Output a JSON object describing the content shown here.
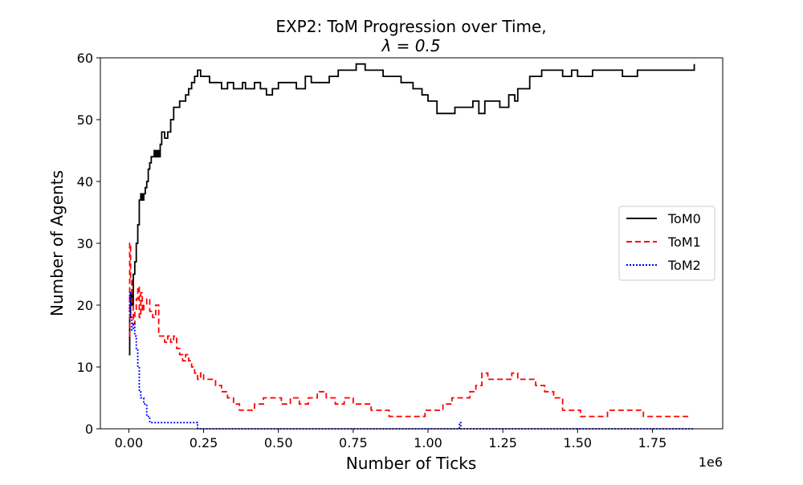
{
  "chart_data": {
    "type": "line",
    "title_line1": "EXP2: ToM Progression over Time,",
    "title_line2": "λ = 0.5",
    "xlabel": "Number of Ticks",
    "ylabel": "Number of Agents",
    "x_multiplier": "1e6",
    "xlim": [
      -0.095,
      1.985
    ],
    "ylim": [
      0,
      60
    ],
    "x_ticks": [
      0.0,
      0.25,
      0.5,
      0.75,
      1.0,
      1.25,
      1.5,
      1.75
    ],
    "x_tick_labels": [
      "0.00",
      "0.25",
      "0.50",
      "0.75",
      "1.00",
      "1.25",
      "1.50",
      "1.75"
    ],
    "y_ticks": [
      0,
      10,
      20,
      30,
      40,
      50,
      60
    ],
    "y_tick_labels": [
      "0",
      "10",
      "20",
      "30",
      "40",
      "50",
      "60"
    ],
    "legend_position": "center-right",
    "series": [
      {
        "name": "ToM0",
        "color": "#000000",
        "style": "solid",
        "x": [
          0.0,
          0.003,
          0.006,
          0.01,
          0.015,
          0.02,
          0.025,
          0.03,
          0.035,
          0.04,
          0.045,
          0.05,
          0.055,
          0.06,
          0.065,
          0.07,
          0.075,
          0.08,
          0.085,
          0.09,
          0.095,
          0.1,
          0.105,
          0.11,
          0.12,
          0.13,
          0.14,
          0.15,
          0.16,
          0.17,
          0.18,
          0.19,
          0.2,
          0.21,
          0.22,
          0.23,
          0.24,
          0.25,
          0.27,
          0.29,
          0.31,
          0.33,
          0.35,
          0.37,
          0.38,
          0.39,
          0.4,
          0.42,
          0.44,
          0.46,
          0.48,
          0.5,
          0.53,
          0.56,
          0.59,
          0.61,
          0.64,
          0.67,
          0.7,
          0.73,
          0.76,
          0.79,
          0.82,
          0.85,
          0.88,
          0.91,
          0.92,
          0.95,
          0.98,
          1.0,
          1.03,
          1.06,
          1.09,
          1.11,
          1.13,
          1.15,
          1.17,
          1.19,
          1.21,
          1.24,
          1.27,
          1.29,
          1.3,
          1.32,
          1.34,
          1.36,
          1.38,
          1.4,
          1.42,
          1.45,
          1.48,
          1.5,
          1.55,
          1.6,
          1.65,
          1.7,
          1.75,
          1.8,
          1.85,
          1.88,
          1.89
        ],
        "y": [
          12,
          18,
          22,
          20,
          25,
          27,
          30,
          33,
          37,
          38,
          37,
          38,
          39,
          40,
          42,
          43,
          44,
          44,
          45,
          44,
          45,
          44,
          46,
          48,
          47,
          48,
          50,
          52,
          52,
          53,
          53,
          54,
          55,
          56,
          57,
          58,
          57,
          57,
          56,
          56,
          55,
          56,
          55,
          55,
          56,
          55,
          55,
          56,
          55,
          54,
          55,
          56,
          56,
          55,
          57,
          56,
          56,
          57,
          58,
          58,
          59,
          58,
          58,
          57,
          57,
          56,
          56,
          55,
          54,
          53,
          51,
          51,
          52,
          52,
          52,
          53,
          51,
          53,
          53,
          52,
          54,
          53,
          55,
          55,
          57,
          57,
          58,
          58,
          58,
          57,
          58,
          57,
          58,
          58,
          57,
          58,
          58,
          58,
          58,
          58,
          59
        ]
      },
      {
        "name": "ToM1",
        "color": "#ff0000",
        "style": "dashed",
        "x": [
          0.0,
          0.003,
          0.006,
          0.01,
          0.015,
          0.02,
          0.025,
          0.03,
          0.035,
          0.04,
          0.045,
          0.05,
          0.06,
          0.07,
          0.08,
          0.09,
          0.1,
          0.11,
          0.12,
          0.13,
          0.14,
          0.15,
          0.16,
          0.17,
          0.18,
          0.19,
          0.2,
          0.21,
          0.22,
          0.23,
          0.24,
          0.25,
          0.27,
          0.29,
          0.31,
          0.33,
          0.35,
          0.37,
          0.39,
          0.42,
          0.45,
          0.48,
          0.51,
          0.54,
          0.57,
          0.6,
          0.63,
          0.66,
          0.69,
          0.72,
          0.75,
          0.78,
          0.81,
          0.84,
          0.87,
          0.9,
          0.93,
          0.96,
          0.99,
          1.02,
          1.05,
          1.08,
          1.11,
          1.14,
          1.16,
          1.18,
          1.2,
          1.23,
          1.26,
          1.28,
          1.3,
          1.33,
          1.36,
          1.39,
          1.42,
          1.45,
          1.48,
          1.51,
          1.54,
          1.57,
          1.6,
          1.64,
          1.68,
          1.72,
          1.76,
          1.8,
          1.85,
          1.88
        ],
        "y": [
          15,
          30,
          24,
          20,
          17,
          19,
          21,
          23,
          18,
          22,
          19,
          20,
          21,
          19,
          18,
          20,
          15,
          15,
          14,
          15,
          14,
          15,
          13,
          12,
          11,
          12,
          11,
          10,
          9,
          8,
          9,
          8,
          8,
          7,
          6,
          5,
          4,
          3,
          3,
          4,
          5,
          5,
          4,
          5,
          4,
          5,
          6,
          5,
          4,
          5,
          4,
          4,
          3,
          3,
          2,
          2,
          2,
          2,
          3,
          3,
          4,
          5,
          5,
          6,
          7,
          9,
          8,
          8,
          8,
          9,
          8,
          8,
          7,
          6,
          5,
          3,
          3,
          2,
          2,
          2,
          3,
          3,
          3,
          2,
          2,
          2,
          2,
          2
        ]
      },
      {
        "name": "ToM2",
        "color": "#0000ff",
        "style": "dotted",
        "x": [
          0.0,
          0.003,
          0.006,
          0.01,
          0.015,
          0.02,
          0.025,
          0.03,
          0.035,
          0.04,
          0.045,
          0.05,
          0.06,
          0.07,
          0.08,
          0.09,
          0.1,
          0.12,
          0.15,
          0.18,
          0.21,
          0.23,
          0.24,
          0.3,
          0.5,
          0.7,
          0.9,
          1.1,
          1.105,
          1.11,
          1.3,
          1.5,
          1.7,
          1.89
        ],
        "y": [
          19,
          22,
          18,
          16,
          17,
          15,
          13,
          10,
          6,
          5,
          5,
          4,
          2,
          1,
          1,
          1,
          1,
          1,
          1,
          1,
          1,
          0,
          0,
          0,
          0,
          0,
          0,
          0,
          1,
          0,
          0,
          0,
          0,
          0
        ]
      }
    ]
  }
}
